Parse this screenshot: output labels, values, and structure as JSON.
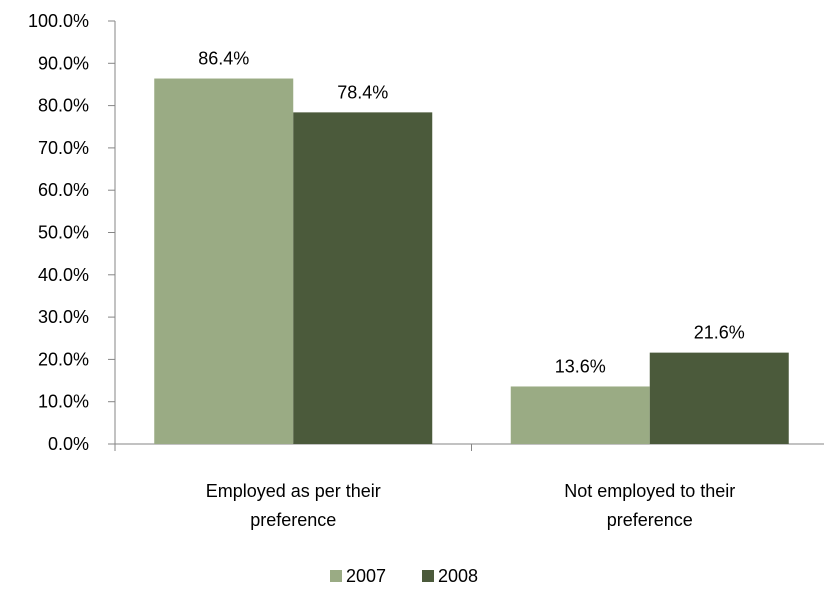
{
  "chart_data": {
    "type": "bar",
    "categories": [
      [
        "Employed as per their",
        "preference"
      ],
      [
        "Not employed to their",
        "preference"
      ]
    ],
    "series": [
      {
        "name": "2007",
        "values": [
          86.4,
          13.6
        ],
        "labels": [
          "86.4%",
          "13.6%"
        ],
        "color": "#9aab84"
      },
      {
        "name": "2008",
        "values": [
          78.4,
          21.6
        ],
        "labels": [
          "78.4%",
          "21.6%"
        ],
        "color": "#4b5a3b"
      }
    ],
    "ylim": [
      0,
      100
    ],
    "ytick_labels": [
      "0.0%",
      "10.0%",
      "20.0%",
      "30.0%",
      "40.0%",
      "50.0%",
      "60.0%",
      "70.0%",
      "80.0%",
      "90.0%",
      "100.0%"
    ],
    "grid": false,
    "legend_position": "bottom"
  }
}
